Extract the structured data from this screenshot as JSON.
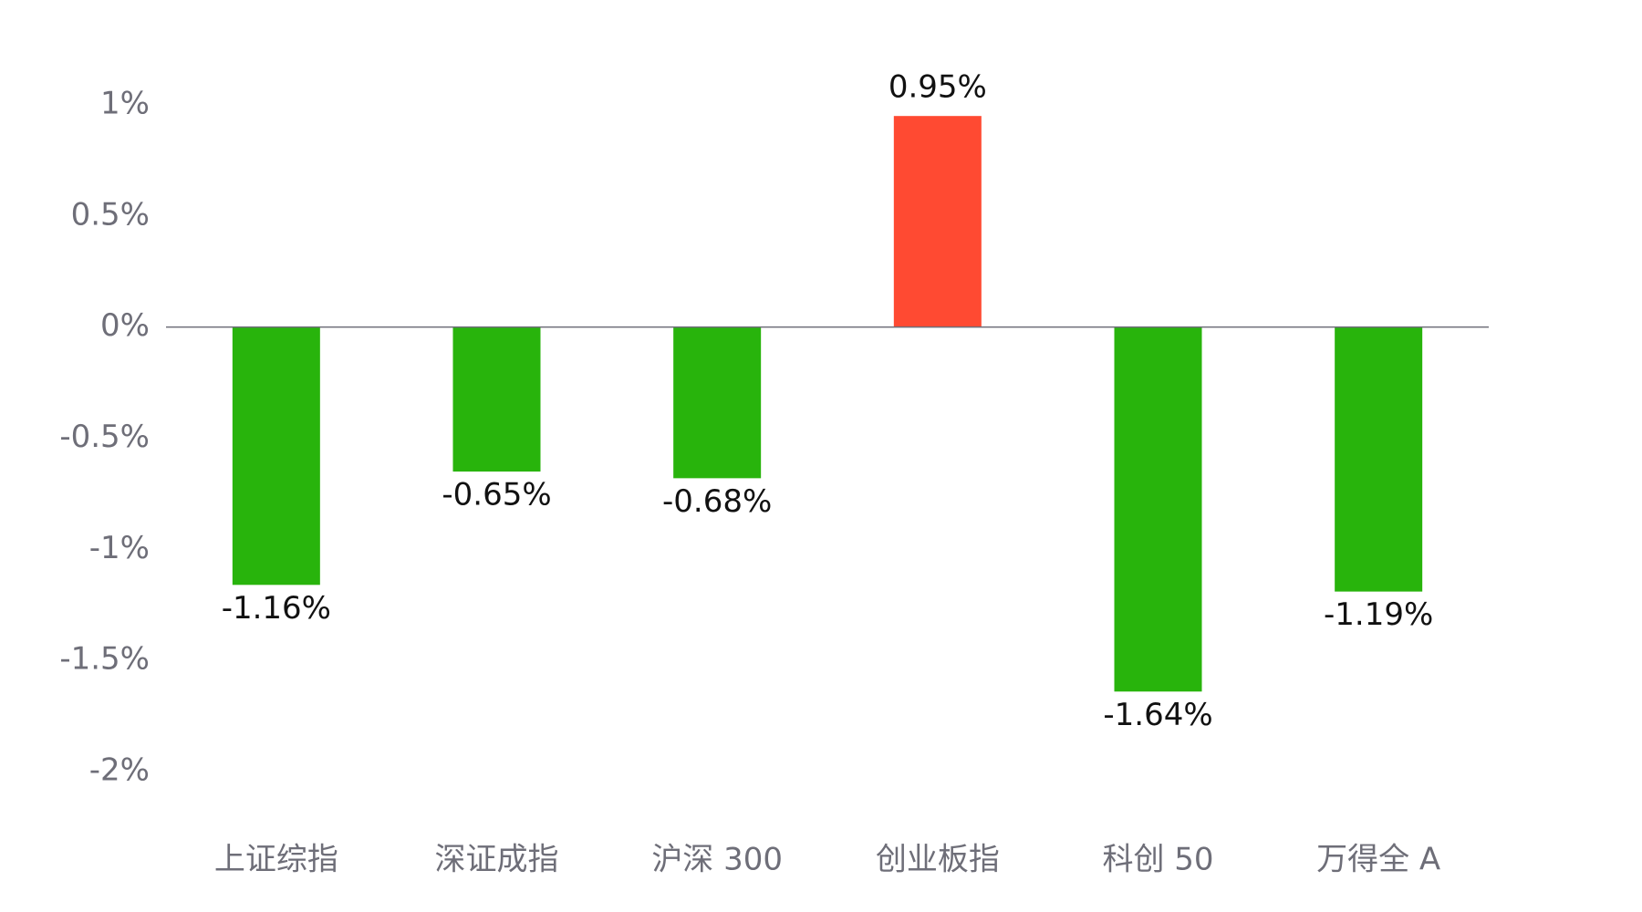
{
  "chart_data": {
    "type": "bar",
    "categories": [
      "上证综指",
      "深证成指",
      "沪深 300",
      "创业板指",
      "科创 50",
      "万得全 A"
    ],
    "values": [
      -1.16,
      -0.65,
      -0.68,
      0.95,
      -1.64,
      -1.19
    ],
    "value_labels": [
      "-1.16%",
      "-0.65%",
      "-0.68%",
      "0.95%",
      "-1.64%",
      "-1.19%"
    ],
    "colors": [
      "#28b40c",
      "#28b40c",
      "#28b40c",
      "#ff4a32",
      "#28b40c",
      "#28b40c"
    ],
    "ylim": [
      -2,
      1
    ],
    "yticks": [
      {
        "value": 1,
        "label": "1%"
      },
      {
        "value": 0.5,
        "label": "0.5%"
      },
      {
        "value": 0,
        "label": "0%"
      },
      {
        "value": -0.5,
        "label": "-0.5%"
      },
      {
        "value": -1,
        "label": "-1%"
      },
      {
        "value": -1.5,
        "label": "-1.5%"
      },
      {
        "value": -2,
        "label": "-2%"
      }
    ],
    "grid": false
  }
}
